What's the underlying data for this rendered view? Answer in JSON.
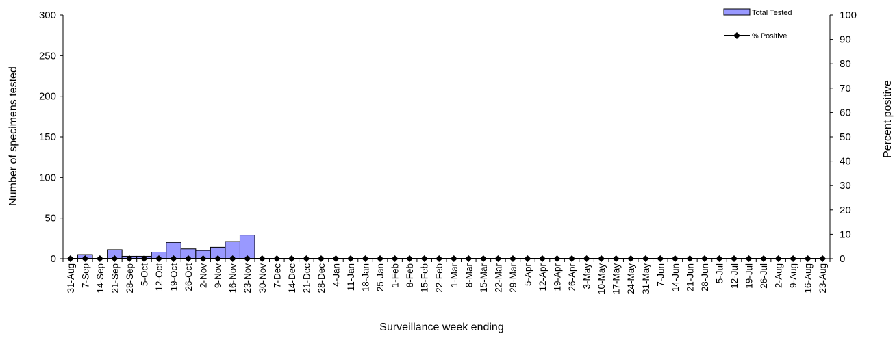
{
  "chart_data": {
    "type": "bar",
    "xlabel": "Surveillance week ending",
    "ylabel": "Number of specimens tested",
    "y2label": "Percent positive",
    "ylim": [
      0,
      300
    ],
    "y2lim": [
      0,
      100
    ],
    "yticks": [
      "0",
      "50",
      "100",
      "150",
      "200",
      "250",
      "300"
    ],
    "y2ticks": [
      "0",
      "10",
      "20",
      "30",
      "40",
      "50",
      "60",
      "70",
      "80",
      "90",
      "100"
    ],
    "legend_position": "top-right",
    "colors": {
      "bar_fill": "#9999ff",
      "bar_stroke": "#000000",
      "line": "#000000"
    },
    "categories": [
      "31-Aug",
      "7-Sep",
      "14-Sep",
      "21-Sep",
      "28-Sep",
      "5-Oct",
      "12-Oct",
      "19-Oct",
      "26-Oct",
      "2-Nov",
      "9-Nov",
      "16-Nov",
      "23-Nov",
      "30-Nov",
      "7-Dec",
      "14-Dec",
      "21-Dec",
      "28-Dec",
      "4-Jan",
      "11-Jan",
      "18-Jan",
      "25-Jan",
      "1-Feb",
      "8-Feb",
      "15-Feb",
      "22-Feb",
      "1-Mar",
      "8-Mar",
      "15-Mar",
      "22-Mar",
      "29-Mar",
      "5-Apr",
      "12-Apr",
      "19-Apr",
      "26-Apr",
      "3-May",
      "10-May",
      "17-May",
      "24-May",
      "31-May",
      "7-Jun",
      "14-Jun",
      "21-Jun",
      "28-Jun",
      "5-Jul",
      "12-Jul",
      "19-Jul",
      "26-Jul",
      "2-Aug",
      "9-Aug",
      "16-Aug",
      "23-Aug"
    ],
    "series": [
      {
        "name": "Total Tested",
        "type": "bar",
        "axis": "left",
        "values": [
          0,
          5,
          0,
          11,
          3,
          3,
          8,
          20,
          12,
          10,
          14,
          21,
          29,
          0,
          0,
          0,
          0,
          0,
          0,
          0,
          0,
          0,
          0,
          0,
          0,
          0,
          0,
          0,
          0,
          0,
          0,
          0,
          0,
          0,
          0,
          0,
          0,
          0,
          0,
          0,
          0,
          0,
          0,
          0,
          0,
          0,
          0,
          0,
          0,
          0,
          0,
          0
        ]
      },
      {
        "name": "% Positive",
        "type": "line",
        "axis": "right",
        "values": [
          0,
          0,
          0,
          0,
          0,
          0,
          0,
          0,
          0,
          0,
          0,
          0,
          0,
          0,
          0,
          0,
          0,
          0,
          0,
          0,
          0,
          0,
          0,
          0,
          0,
          0,
          0,
          0,
          0,
          0,
          0,
          0,
          0,
          0,
          0,
          0,
          0,
          0,
          0,
          0,
          0,
          0,
          0,
          0,
          0,
          0,
          0,
          0,
          0,
          0,
          0,
          0
        ]
      }
    ]
  }
}
